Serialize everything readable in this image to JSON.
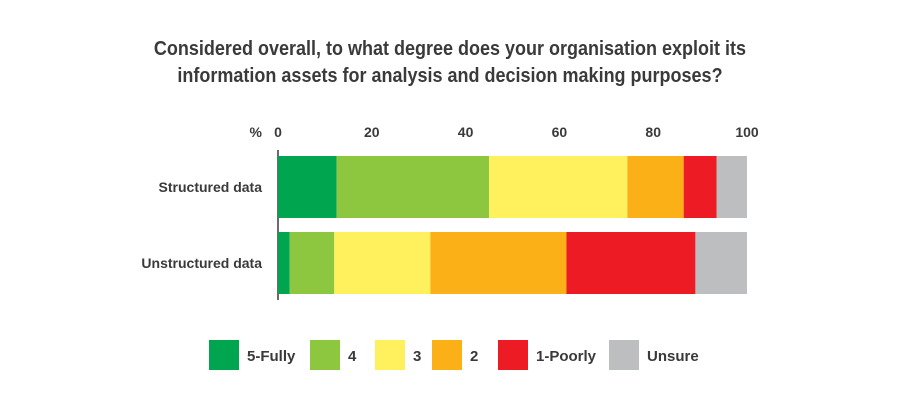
{
  "chart_data": {
    "type": "bar",
    "orientation": "horizontal",
    "stacked": true,
    "title_lines": [
      "Considered overall, to what degree does your organisation exploit its",
      "information assets for analysis and decision making purposes?"
    ],
    "axis_unit_label": "%",
    "xlim": [
      0,
      100
    ],
    "x_ticks": [
      "0",
      "20",
      "40",
      "60",
      "80",
      "100"
    ],
    "categories": [
      "Structured data",
      "Unstructured data"
    ],
    "series": [
      {
        "name": "5-Fully",
        "color": "#00a550",
        "values": [
          12.5,
          2.5
        ]
      },
      {
        "name": "4",
        "color": "#8dc63f",
        "values": [
          32.5,
          9.5
        ]
      },
      {
        "name": "3",
        "color": "#fff15d",
        "values": [
          29.5,
          20.5
        ]
      },
      {
        "name": "2",
        "color": "#fbb017",
        "values": [
          12.0,
          29.0
        ]
      },
      {
        "name": "1-Poorly",
        "color": "#ed1c24",
        "values": [
          7.0,
          27.5
        ]
      },
      {
        "name": "Unsure",
        "color": "#bcbec0",
        "values": [
          6.5,
          11.0
        ]
      }
    ],
    "grid": false,
    "legend_position": "bottom"
  }
}
